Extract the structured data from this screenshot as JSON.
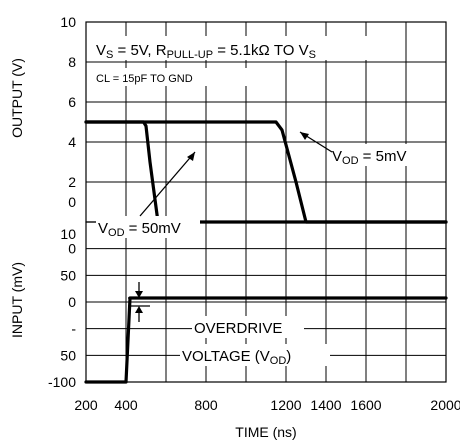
{
  "chart_data": {
    "type": "line",
    "xlabel": "TIME (ns)",
    "xlim": [
      200,
      2000
    ],
    "x_ticks": [
      "200",
      "400",
      "800",
      "1200",
      "1400",
      "1600",
      "2000"
    ],
    "grid": true,
    "panels": [
      {
        "name": "output",
        "ylabel": "OUTPUT (V)",
        "ylim": [
          0,
          10
        ],
        "y_ticks": [
          "10",
          "8",
          "6",
          "4",
          "2",
          "0"
        ],
        "series": [
          {
            "name": "VOD = 50mV",
            "x": [
              200,
              420,
              450,
              488,
              500,
              520,
              560,
              2000
            ],
            "y": [
              5,
              5,
              5,
              5,
              4.8,
              3,
              0,
              0
            ]
          },
          {
            "name": "VOD = 5mV",
            "x": [
              200,
              900,
              1100,
              1150,
              1180,
              1250,
              1300,
              2000
            ],
            "y": [
              5,
              5,
              5,
              5,
              4.6,
              2,
              0,
              0
            ]
          }
        ]
      },
      {
        "name": "input",
        "ylabel": "INPUT (mV)",
        "ylim": [
          -100,
          100
        ],
        "y_ticks": [
          "10",
          "0",
          "50",
          "0",
          "-",
          "50",
          "-100"
        ],
        "series": [
          {
            "name": "input",
            "x": [
              200,
              400,
              420,
              2000
            ],
            "y": [
              -100,
              -100,
              5,
              5
            ]
          }
        ]
      }
    ],
    "annotations": {
      "title_line1": "VS = 5V, RPULL-UP = 5.1kΩ TO VS",
      "title_line2": "CL = 15pF TO GND",
      "vod50": "VOD = 50mV",
      "vod5": "VOD = 5mV",
      "overdrive1": "OVERDRIVE",
      "overdrive2": "VOLTAGE (VOD)"
    }
  }
}
